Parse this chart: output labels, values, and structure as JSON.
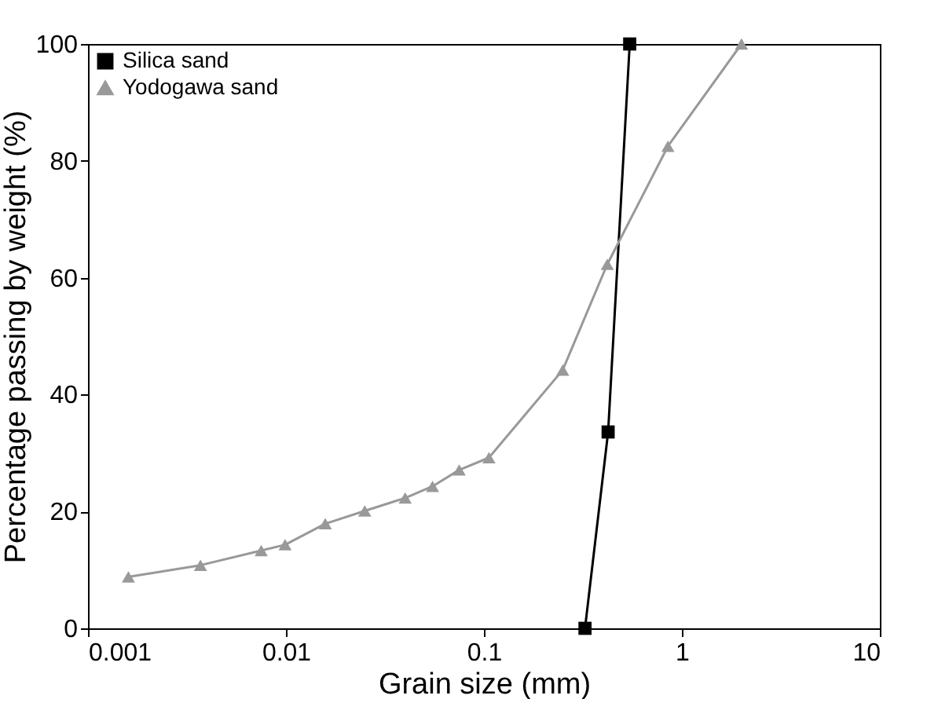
{
  "chart_data": {
    "type": "line",
    "xlabel": "Grain size (mm)",
    "ylabel": "Percentage passing by weight (%)",
    "log": "x",
    "xlim": [
      0.001,
      10
    ],
    "xticks": [
      0.001,
      0.01,
      0.1,
      1,
      10
    ],
    "ylim": [
      0,
      100
    ],
    "yticks": [
      0,
      20,
      40,
      60,
      80,
      100
    ],
    "grid": false,
    "legend": "top left",
    "series": [
      {
        "name": "Silica sand",
        "color": "#000000",
        "marker": "square",
        "x": [
          0.324,
          0.424,
          0.545
        ],
        "values": [
          0,
          33.6,
          100
        ]
      },
      {
        "name": "Yodogawa sand",
        "color": "#999999",
        "marker": "triangle",
        "x": [
          0.0016,
          0.0037,
          0.0075,
          0.0099,
          0.0158,
          0.025,
          0.04,
          0.055,
          0.075,
          0.106,
          0.25,
          0.42,
          0.85,
          2
        ],
        "values": [
          8.8,
          10.8,
          13.3,
          14.3,
          17.9,
          20.1,
          22.3,
          24.3,
          27.1,
          29.2,
          44.2,
          62.3,
          82.5,
          100
        ]
      }
    ]
  }
}
